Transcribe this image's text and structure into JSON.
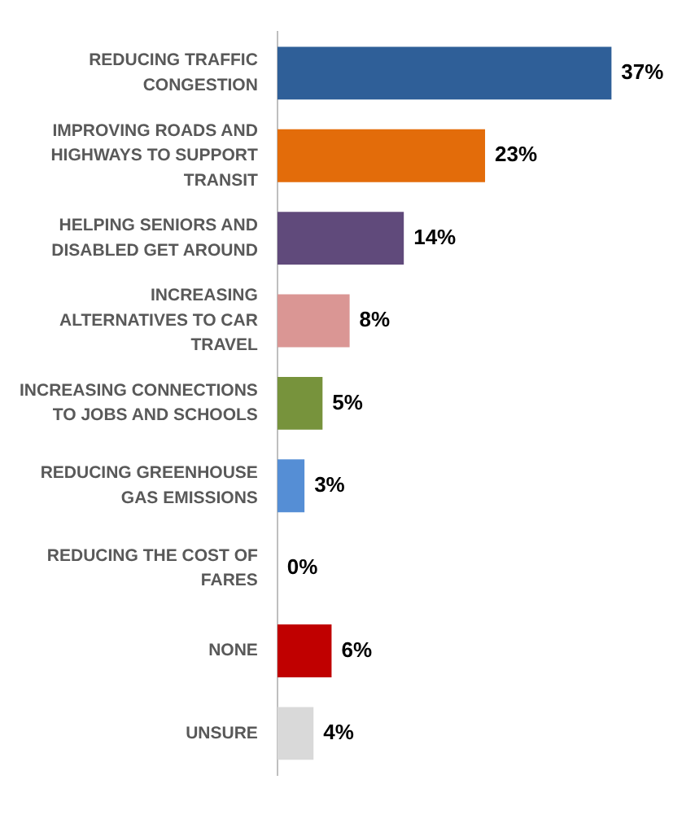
{
  "chart_data": {
    "type": "bar",
    "orientation": "horizontal",
    "categories": [
      "REDUCING TRAFFIC CONGESTION",
      "IMPROVING ROADS AND HIGHWAYS TO SUPPORT TRANSIT",
      "HELPING SENIORS AND DISABLED GET AROUND",
      "INCREASING ALTERNATIVES TO CAR TRAVEL",
      "INCREASING CONNECTIONS TO JOBS AND SCHOOLS",
      "REDUCING GREENHOUSE GAS EMISSIONS",
      "REDUCING THE COST OF FARES",
      "NONE",
      "UNSURE"
    ],
    "values": [
      37,
      23,
      14,
      8,
      5,
      3,
      0,
      6,
      4
    ],
    "colors": [
      "#2f5f98",
      "#e36c0a",
      "#604a7b",
      "#da9694",
      "#77933c",
      "#558ed5",
      "#f2f2f2",
      "#c00000",
      "#d9d9d9"
    ],
    "value_labels": [
      "37%",
      "23%",
      "14%",
      "8%",
      "5%",
      "3%",
      "0%",
      "6%",
      "4%"
    ],
    "legend": false
  }
}
